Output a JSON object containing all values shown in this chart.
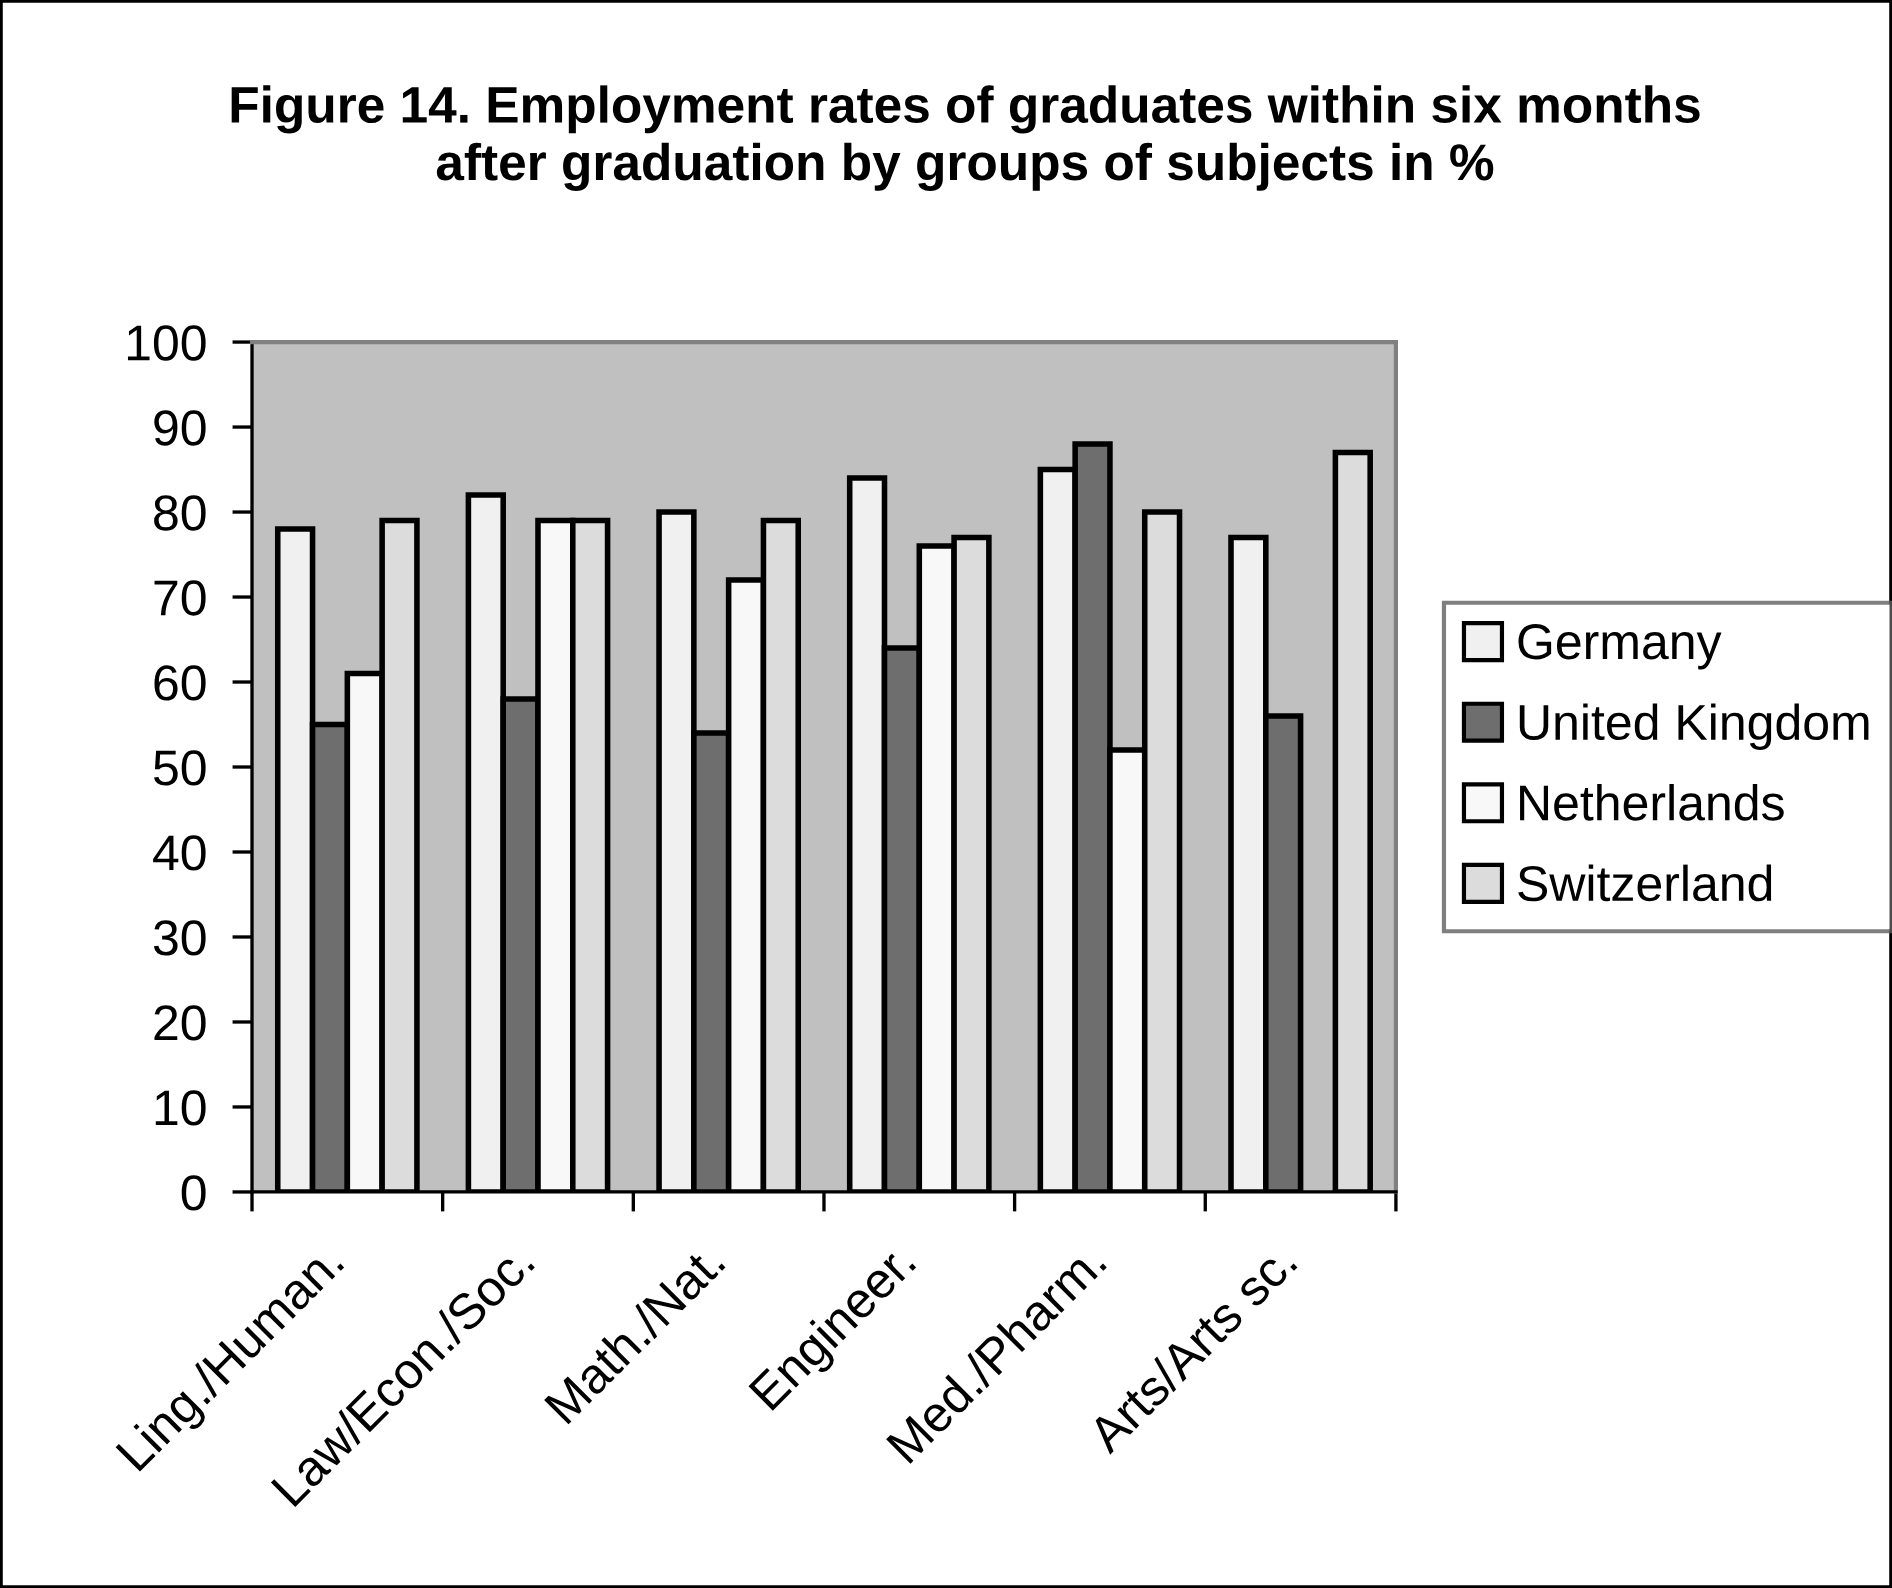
{
  "chart_data": {
    "type": "bar",
    "title": "Figure 14. Employment rates of graduates within six months\nafter graduation by groups of subjects in %",
    "categories": [
      "Ling./Human.",
      "Law/Econ./Soc.",
      "Math./Nat.",
      "Engineer.",
      "Med./Pharm.",
      "Arts/Arts sc."
    ],
    "series": [
      {
        "name": "Germany",
        "color": "#f0f0f0",
        "values": [
          78,
          82,
          80,
          84,
          85,
          77
        ]
      },
      {
        "name": "United Kingdom",
        "color": "#6e6e6e",
        "values": [
          55,
          58,
          54,
          64,
          88,
          56
        ]
      },
      {
        "name": "Netherlands",
        "color": "#f8f8f8",
        "values": [
          61,
          79,
          72,
          76,
          52,
          null
        ]
      },
      {
        "name": "Switzerland",
        "color": "#dcdcdc",
        "values": [
          79,
          79,
          79,
          77,
          80,
          87
        ]
      }
    ],
    "ylim": [
      0,
      100
    ],
    "yticks": [
      0,
      10,
      20,
      30,
      40,
      50,
      60,
      70,
      80,
      90,
      100
    ],
    "legend": "right"
  }
}
